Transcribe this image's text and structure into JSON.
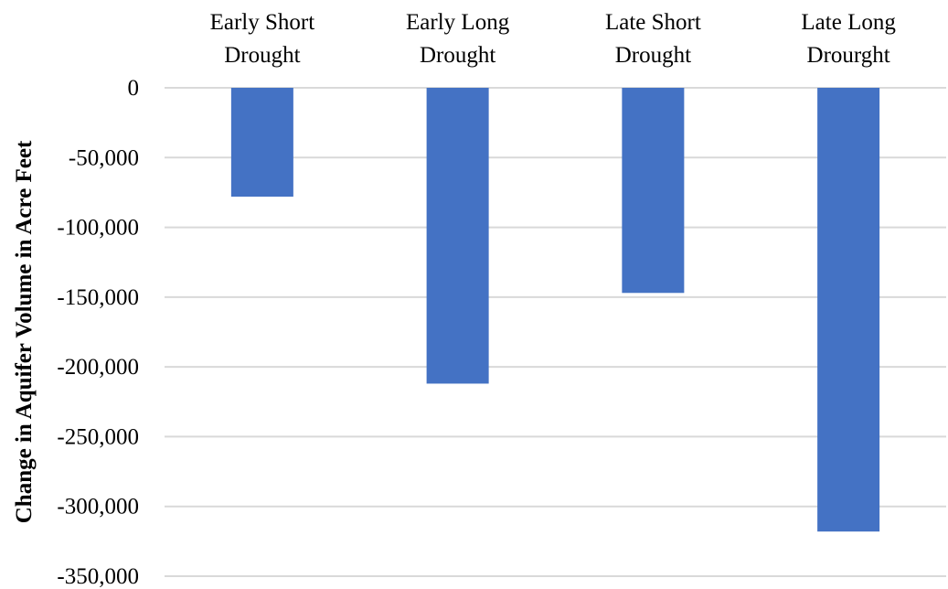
{
  "chart_data": {
    "type": "bar",
    "categories": [
      [
        "Early Short",
        "Drought"
      ],
      [
        "Early Long",
        "Drought"
      ],
      [
        "Late Short",
        "Drought"
      ],
      [
        "Late Long",
        "Drourght"
      ]
    ],
    "values": [
      -78000,
      -212000,
      -147000,
      -318000
    ],
    "ylabel": "Change in Aquifer Volume in Acre Feet",
    "ylim": [
      -350000,
      0
    ],
    "yticks": [
      0,
      -50000,
      -100000,
      -150000,
      -200000,
      -250000,
      -300000,
      -350000
    ],
    "ytick_labels": [
      "0",
      "-50,000",
      "-100,000",
      "-150,000",
      "-200,000",
      "-250,000",
      "-300,000",
      "-350,000"
    ],
    "x_axis_position": "top",
    "grid": true,
    "legend": "none",
    "colors": {
      "bar": "#4472C4",
      "grid": "#D9D9D9"
    }
  }
}
